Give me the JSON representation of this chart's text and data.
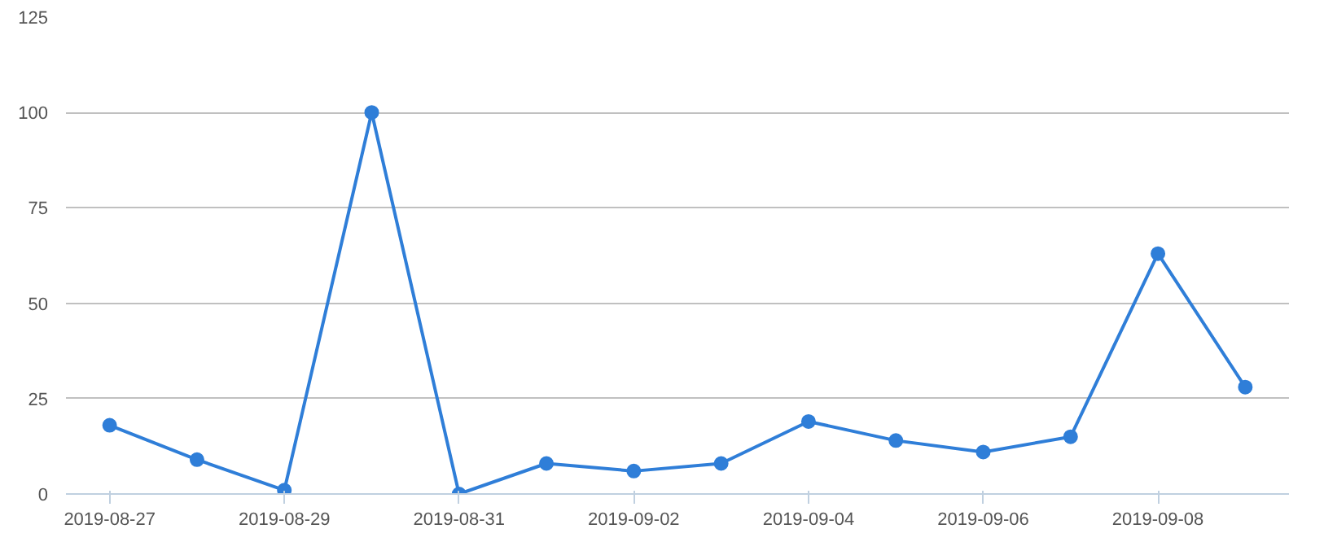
{
  "chart_data": {
    "type": "line",
    "x": [
      "2019-08-27",
      "2019-08-28",
      "2019-08-29",
      "2019-08-30",
      "2019-08-31",
      "2019-09-01",
      "2019-09-02",
      "2019-09-03",
      "2019-09-04",
      "2019-09-05",
      "2019-09-06",
      "2019-09-07",
      "2019-09-08",
      "2019-09-09"
    ],
    "series": [
      {
        "color": "#2f7ed8",
        "values": [
          18,
          9,
          1,
          100,
          0,
          8,
          6,
          8,
          19,
          14,
          11,
          15,
          63,
          28
        ]
      }
    ],
    "xlim": [
      "2019-08-26T12:00",
      "2019-09-09T12:00"
    ],
    "xticks": [
      "2019-08-27",
      "2019-08-29",
      "2019-08-31",
      "2019-09-02",
      "2019-09-04",
      "2019-09-06",
      "2019-09-08"
    ],
    "ylim": [
      0,
      125
    ],
    "yticks": [
      0,
      25,
      50,
      75,
      100,
      125
    ],
    "grid": "y",
    "marker": "circle",
    "line_style": "solid"
  }
}
